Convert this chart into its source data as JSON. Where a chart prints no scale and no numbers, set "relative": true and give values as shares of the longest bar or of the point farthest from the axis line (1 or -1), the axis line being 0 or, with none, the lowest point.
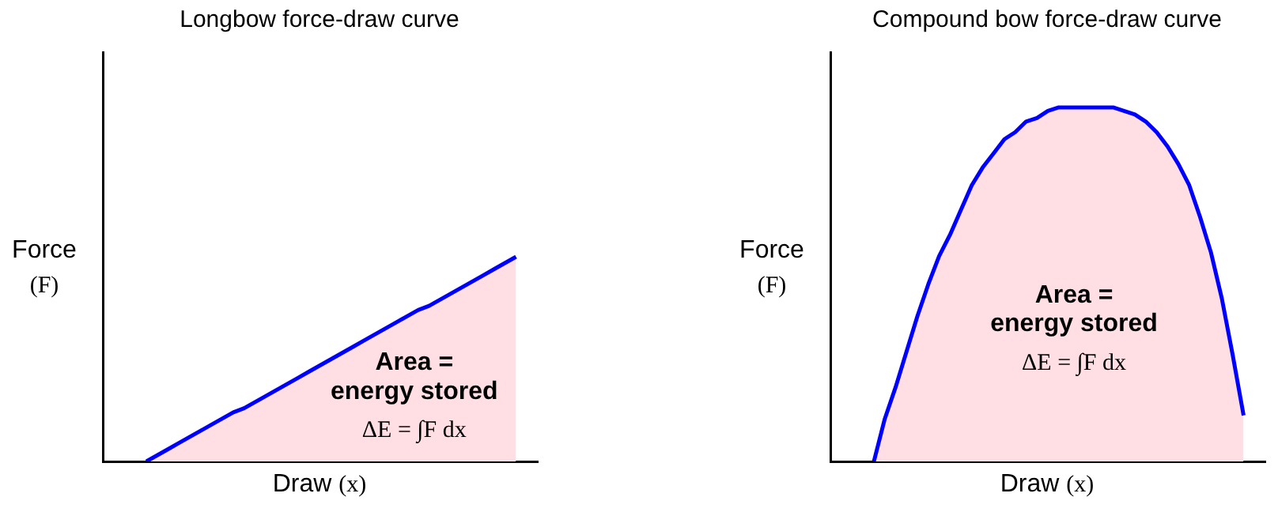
{
  "chart_data": [
    {
      "type": "area",
      "title": "Longbow force-draw curve",
      "xlabel": "Draw (x)",
      "ylabel": "Force (F)",
      "relative": true,
      "legend": false,
      "grid": false,
      "tick_labels": false,
      "categories": [
        null,
        null,
        null,
        null,
        null,
        null,
        null,
        null,
        null,
        null,
        null,
        null,
        null,
        null,
        null,
        null,
        null,
        null,
        null,
        null,
        null,
        null,
        null,
        null,
        null,
        null,
        null,
        null,
        null,
        null,
        null,
        null,
        null,
        null,
        null,
        null,
        null,
        null,
        null,
        null,
        null
      ],
      "series": [
        {
          "type": "area",
          "color": "#ffdfe3",
          "values": [
            null,
            null,
            null,
            null,
            0,
            0.03,
            0.06,
            0.09,
            0.12,
            0.15,
            0.18,
            0.21,
            0.24,
            0.26,
            0.29,
            0.32,
            0.35,
            0.38,
            0.41,
            0.44,
            0.47,
            0.5,
            0.53,
            0.56,
            0.59,
            0.62,
            0.65,
            0.68,
            0.71,
            0.74,
            0.76,
            0.79,
            0.82,
            0.85,
            0.88,
            0.91,
            0.94,
            0.97,
            1,
            null,
            null
          ]
        }
      ],
      "annotations": [
        "Area =",
        "energy stored",
        "ΔE = ∫F dx"
      ]
    },
    {
      "type": "area",
      "title": "Compound bow force-draw curve",
      "xlabel": "Draw (x)",
      "ylabel": "Force (F)",
      "relative": true,
      "legend": false,
      "grid": false,
      "tick_labels": false,
      "categories": [
        null,
        null,
        null,
        null,
        null,
        null,
        null,
        null,
        null,
        null,
        null,
        null,
        null,
        null,
        null,
        null,
        null,
        null,
        null,
        null,
        null,
        null,
        null,
        null,
        null,
        null,
        null,
        null,
        null,
        null,
        null,
        null,
        null,
        null,
        null,
        null,
        null,
        null,
        null,
        null,
        null
      ],
      "series": [
        {
          "type": "area",
          "color": "#ffdfe3",
          "values": [
            null,
            null,
            null,
            null,
            0,
            0.12,
            0.21,
            0.31,
            0.41,
            0.5,
            0.58,
            0.64,
            0.71,
            0.78,
            0.83,
            0.87,
            0.91,
            0.93,
            0.96,
            0.97,
            0.99,
            1,
            1,
            1,
            1,
            1,
            1,
            0.99,
            0.98,
            0.96,
            0.93,
            0.89,
            0.84,
            0.78,
            0.69,
            0.59,
            0.46,
            0.3,
            0.13,
            null,
            null
          ]
        }
      ],
      "annotations": [
        "Area =",
        "energy stored",
        "ΔE = ∫F dx"
      ]
    }
  ]
}
